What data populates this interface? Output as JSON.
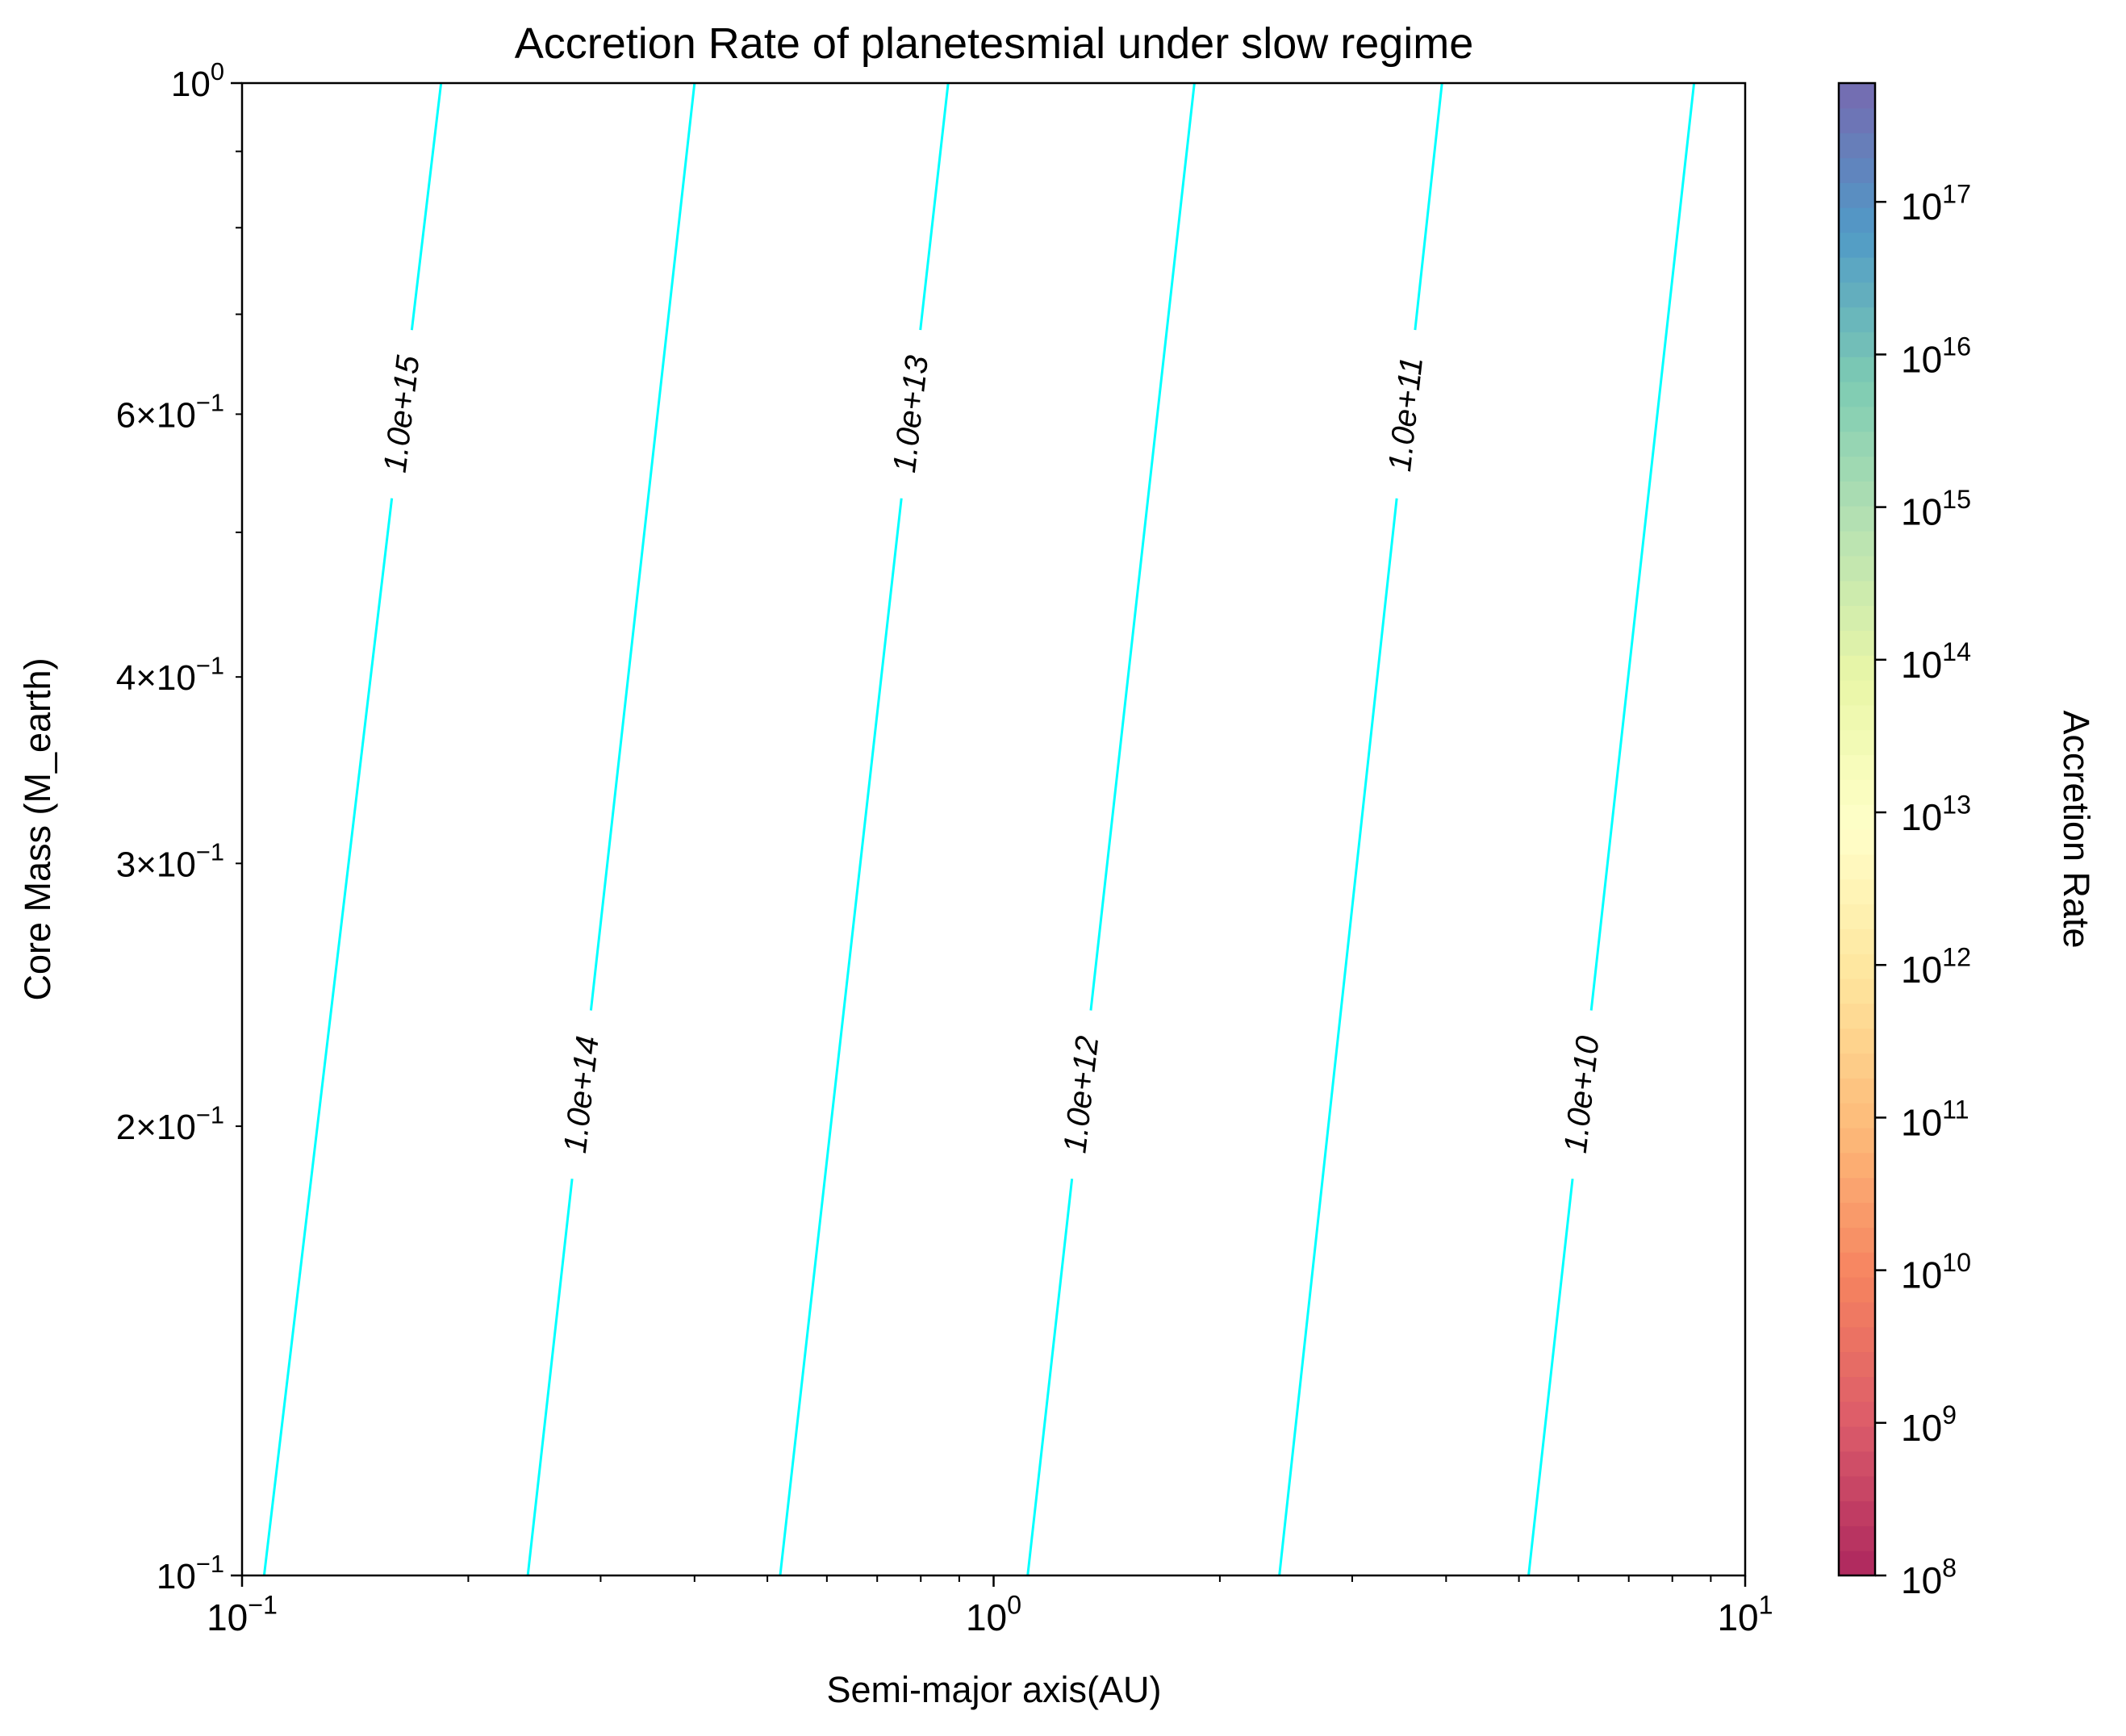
{
  "chart_data": {
    "type": "heatmap",
    "title": "Accretion Rate of planetesmial under slow regime",
    "xlabel": "Semi-major axis(AU)",
    "ylabel": "Core Mass (M_earth)",
    "colorbar_label": "Accretion Rate",
    "x_scale": "log",
    "y_scale": "log",
    "color_scale": "log",
    "colormap": "Spectral",
    "xlim": [
      0.1,
      10
    ],
    "ylim": [
      0.1,
      1
    ],
    "color_range": [
      100000000.0,
      6e+17
    ],
    "x_ticks": [
      {
        "value": 0.1,
        "base": "10",
        "exp": "−1"
      },
      {
        "value": 1,
        "base": "10",
        "exp": "0"
      },
      {
        "value": 10,
        "base": "10",
        "exp": "1"
      }
    ],
    "y_ticks": [
      {
        "value": 0.1,
        "coef": "",
        "base": "10",
        "exp": "−1"
      },
      {
        "value": 0.2,
        "coef": "2×",
        "base": "10",
        "exp": "−1"
      },
      {
        "value": 0.3,
        "coef": "3×",
        "base": "10",
        "exp": "−1"
      },
      {
        "value": 0.4,
        "coef": "4×",
        "base": "10",
        "exp": "−1"
      },
      {
        "value": 0.6,
        "coef": "6×",
        "base": "10",
        "exp": "−1"
      },
      {
        "value": 1,
        "coef": "",
        "base": "10",
        "exp": "0"
      }
    ],
    "colorbar_ticks": [
      {
        "value": 100000000.0,
        "base": "10",
        "exp": "8"
      },
      {
        "value": 1000000000.0,
        "base": "10",
        "exp": "9"
      },
      {
        "value": 10000000000.0,
        "base": "10",
        "exp": "10"
      },
      {
        "value": 100000000000.0,
        "base": "10",
        "exp": "11"
      },
      {
        "value": 1000000000000.0,
        "base": "10",
        "exp": "12"
      },
      {
        "value": 10000000000000.0,
        "base": "10",
        "exp": "13"
      },
      {
        "value": 100000000000000.0,
        "base": "10",
        "exp": "14"
      },
      {
        "value": 1000000000000000.0,
        "base": "10",
        "exp": "15"
      },
      {
        "value": 1e+16,
        "base": "10",
        "exp": "16"
      },
      {
        "value": 1e+17,
        "base": "10",
        "exp": "17"
      }
    ],
    "contour_color": "#00FFFF",
    "contours": [
      {
        "level": 1000000000000000.0,
        "label": "1.0e+15",
        "x_at_ymin": 0.107,
        "x_at_ymax": 0.184,
        "label_y": 0.6
      },
      {
        "level": 100000000000000.0,
        "label": "1.0e+14",
        "x_at_ymin": 0.24,
        "x_at_ymax": 0.4,
        "label_y": 0.21
      },
      {
        "level": 10000000000000.0,
        "label": "1.0e+13",
        "x_at_ymin": 0.52,
        "x_at_ymax": 0.87,
        "label_y": 0.6
      },
      {
        "level": 1000000000000.0,
        "label": "1.0e+12",
        "x_at_ymin": 1.11,
        "x_at_ymax": 1.85,
        "label_y": 0.21
      },
      {
        "level": 100000000000.0,
        "label": "1.0e+11",
        "x_at_ymin": 2.4,
        "x_at_ymax": 3.95,
        "label_y": 0.6
      },
      {
        "level": 10000000000.0,
        "label": "1.0e+10",
        "x_at_ymin": 5.15,
        "x_at_ymax": 8.55,
        "label_y": 0.21
      }
    ]
  }
}
